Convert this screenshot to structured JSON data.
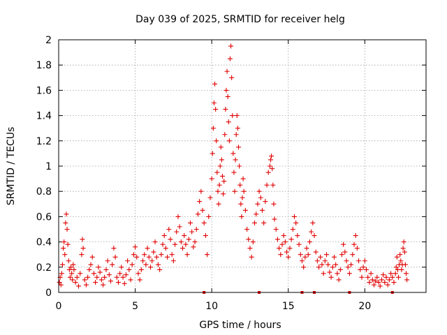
{
  "chart_data": {
    "type": "scatter",
    "title": "Day 039 of 2025, SRMTID for receiver helg",
    "xlabel": "GPS time / hours",
    "ylabel": "SRMTID / TECUs",
    "xlim": [
      0,
      24
    ],
    "ylim": [
      0,
      2
    ],
    "xticks": [
      0,
      5,
      10,
      15,
      20
    ],
    "yticks": [
      0,
      0.2,
      0.4,
      0.6,
      0.8,
      1,
      1.2,
      1.4,
      1.6,
      1.8,
      2
    ],
    "xtick_labels": [
      "0",
      "5",
      "10",
      "15",
      "20"
    ],
    "ytick_labels": [
      "0",
      "0.2",
      "0.4",
      "0.6",
      "0.8",
      "1",
      "1.2",
      "1.4",
      "1.6",
      "1.8",
      "2"
    ],
    "grid": true,
    "marker": "plus",
    "color": "#e00000",
    "series": [
      {
        "name": "SRMTID",
        "points": [
          [
            0.05,
            0.08
          ],
          [
            0.1,
            0.12
          ],
          [
            0.15,
            0.06
          ],
          [
            0.2,
            0.15
          ],
          [
            0.25,
            0.22
          ],
          [
            0.3,
            0.35
          ],
          [
            0.35,
            0.4
          ],
          [
            0.4,
            0.3
          ],
          [
            0.45,
            0.55
          ],
          [
            0.5,
            0.62
          ],
          [
            0.55,
            0.5
          ],
          [
            0.6,
            0.38
          ],
          [
            0.65,
            0.25
          ],
          [
            0.7,
            0.18
          ],
          [
            0.75,
            0.12
          ],
          [
            0.8,
            0.2
          ],
          [
            0.85,
            0.15
          ],
          [
            0.9,
            0.1
          ],
          [
            0.95,
            0.22
          ],
          [
            1.0,
            0.18
          ],
          [
            1.1,
            0.08
          ],
          [
            1.2,
            0.12
          ],
          [
            1.3,
            0.05
          ],
          [
            1.4,
            0.15
          ],
          [
            1.5,
            0.3
          ],
          [
            1.55,
            0.42
          ],
          [
            1.6,
            0.35
          ],
          [
            1.7,
            0.1
          ],
          [
            1.8,
            0.06
          ],
          [
            1.9,
            0.12
          ],
          [
            2.0,
            0.18
          ],
          [
            2.1,
            0.22
          ],
          [
            2.2,
            0.28
          ],
          [
            2.3,
            0.15
          ],
          [
            2.4,
            0.08
          ],
          [
            2.5,
            0.12
          ],
          [
            2.6,
            0.2
          ],
          [
            2.7,
            0.16
          ],
          [
            2.8,
            0.1
          ],
          [
            2.9,
            0.06
          ],
          [
            3.0,
            0.12
          ],
          [
            3.1,
            0.18
          ],
          [
            3.2,
            0.25
          ],
          [
            3.3,
            0.14
          ],
          [
            3.4,
            0.09
          ],
          [
            3.5,
            0.22
          ],
          [
            3.6,
            0.35
          ],
          [
            3.7,
            0.28
          ],
          [
            3.8,
            0.12
          ],
          [
            3.9,
            0.08
          ],
          [
            4.0,
            0.15
          ],
          [
            4.1,
            0.2
          ],
          [
            4.2,
            0.12
          ],
          [
            4.3,
            0.07
          ],
          [
            4.4,
            0.14
          ],
          [
            4.5,
            0.25
          ],
          [
            4.6,
            0.18
          ],
          [
            4.7,
            0.1
          ],
          [
            4.8,
            0.22
          ],
          [
            4.9,
            0.3
          ],
          [
            5.0,
            0.36
          ],
          [
            5.1,
            0.28
          ],
          [
            5.2,
            0.15
          ],
          [
            5.3,
            0.1
          ],
          [
            5.4,
            0.18
          ],
          [
            5.5,
            0.25
          ],
          [
            5.6,
            0.3
          ],
          [
            5.7,
            0.22
          ],
          [
            5.8,
            0.35
          ],
          [
            5.9,
            0.28
          ],
          [
            6.0,
            0.2
          ],
          [
            6.1,
            0.25
          ],
          [
            6.2,
            0.32
          ],
          [
            6.3,
            0.4
          ],
          [
            6.4,
            0.28
          ],
          [
            6.5,
            0.22
          ],
          [
            6.6,
            0.18
          ],
          [
            6.7,
            0.3
          ],
          [
            6.8,
            0.38
          ],
          [
            6.9,
            0.45
          ],
          [
            7.0,
            0.35
          ],
          [
            7.1,
            0.28
          ],
          [
            7.2,
            0.5
          ],
          [
            7.3,
            0.42
          ],
          [
            7.4,
            0.3
          ],
          [
            7.5,
            0.25
          ],
          [
            7.6,
            0.38
          ],
          [
            7.7,
            0.48
          ],
          [
            7.8,
            0.6
          ],
          [
            7.9,
            0.52
          ],
          [
            8.0,
            0.4
          ],
          [
            8.1,
            0.35
          ],
          [
            8.2,
            0.45
          ],
          [
            8.3,
            0.38
          ],
          [
            8.4,
            0.3
          ],
          [
            8.5,
            0.42
          ],
          [
            8.6,
            0.55
          ],
          [
            8.7,
            0.48
          ],
          [
            8.8,
            0.36
          ],
          [
            8.9,
            0.4
          ],
          [
            9.0,
            0.5
          ],
          [
            9.1,
            0.62
          ],
          [
            9.2,
            0.72
          ],
          [
            9.3,
            0.8
          ],
          [
            9.4,
            0.65
          ],
          [
            9.5,
            0.55
          ],
          [
            9.6,
            0.45
          ],
          [
            9.7,
            0.3
          ],
          [
            9.8,
            0.6
          ],
          [
            9.9,
            0.75
          ],
          [
            10.0,
            0.9
          ],
          [
            10.05,
            1.1
          ],
          [
            10.1,
            1.3
          ],
          [
            10.15,
            1.5
          ],
          [
            10.2,
            1.65
          ],
          [
            10.25,
            1.45
          ],
          [
            10.3,
            1.2
          ],
          [
            10.35,
            0.95
          ],
          [
            10.4,
            0.8
          ],
          [
            10.45,
            0.7
          ],
          [
            10.5,
            0.85
          ],
          [
            10.55,
            1.0
          ],
          [
            10.6,
            1.15
          ],
          [
            10.65,
            1.05
          ],
          [
            10.7,
            0.92
          ],
          [
            10.75,
            0.78
          ],
          [
            10.8,
            0.88
          ],
          [
            10.85,
            1.25
          ],
          [
            10.9,
            1.45
          ],
          [
            10.95,
            1.6
          ],
          [
            11.0,
            1.75
          ],
          [
            11.05,
            1.55
          ],
          [
            11.1,
            1.35
          ],
          [
            11.15,
            1.2
          ],
          [
            11.2,
            1.85
          ],
          [
            11.25,
            1.95
          ],
          [
            11.3,
            1.7
          ],
          [
            11.35,
            1.4
          ],
          [
            11.4,
            1.1
          ],
          [
            11.45,
            0.95
          ],
          [
            11.5,
            0.8
          ],
          [
            11.55,
            1.05
          ],
          [
            11.6,
            1.25
          ],
          [
            11.65,
            1.4
          ],
          [
            11.7,
            1.3
          ],
          [
            11.75,
            1.15
          ],
          [
            11.8,
            1.0
          ],
          [
            11.85,
            0.85
          ],
          [
            11.9,
            0.7
          ],
          [
            11.95,
            0.6
          ],
          [
            12.0,
            0.75
          ],
          [
            12.05,
            0.9
          ],
          [
            12.1,
            0.8
          ],
          [
            12.2,
            0.65
          ],
          [
            12.3,
            0.5
          ],
          [
            12.4,
            0.42
          ],
          [
            12.5,
            0.35
          ],
          [
            12.6,
            0.28
          ],
          [
            12.7,
            0.4
          ],
          [
            12.8,
            0.55
          ],
          [
            12.9,
            0.62
          ],
          [
            13.0,
            0.7
          ],
          [
            13.1,
            0.8
          ],
          [
            13.2,
            0.75
          ],
          [
            13.3,
            0.65
          ],
          [
            13.4,
            0.55
          ],
          [
            13.5,
            0.72
          ],
          [
            13.6,
            0.85
          ],
          [
            13.7,
            0.95
          ],
          [
            13.8,
            1.0
          ],
          [
            13.85,
            1.05
          ],
          [
            13.9,
            1.08
          ],
          [
            13.95,
            0.98
          ],
          [
            14.0,
            0.85
          ],
          [
            14.05,
            0.7
          ],
          [
            14.1,
            0.58
          ],
          [
            14.2,
            0.5
          ],
          [
            14.3,
            0.42
          ],
          [
            14.4,
            0.35
          ],
          [
            14.5,
            0.3
          ],
          [
            14.6,
            0.38
          ],
          [
            14.7,
            0.45
          ],
          [
            14.8,
            0.4
          ],
          [
            14.9,
            0.32
          ],
          [
            15.0,
            0.28
          ],
          [
            15.1,
            0.35
          ],
          [
            15.2,
            0.42
          ],
          [
            15.3,
            0.5
          ],
          [
            15.4,
            0.6
          ],
          [
            15.5,
            0.55
          ],
          [
            15.6,
            0.45
          ],
          [
            15.7,
            0.38
          ],
          [
            15.8,
            0.3
          ],
          [
            15.9,
            0.25
          ],
          [
            16.0,
            0.2
          ],
          [
            16.1,
            0.28
          ],
          [
            16.2,
            0.35
          ],
          [
            16.3,
            0.3
          ],
          [
            16.4,
            0.4
          ],
          [
            16.5,
            0.48
          ],
          [
            16.6,
            0.55
          ],
          [
            16.7,
            0.45
          ],
          [
            16.8,
            0.32
          ],
          [
            16.9,
            0.25
          ],
          [
            17.0,
            0.2
          ],
          [
            17.1,
            0.28
          ],
          [
            17.2,
            0.22
          ],
          [
            17.3,
            0.15
          ],
          [
            17.4,
            0.25
          ],
          [
            17.5,
            0.3
          ],
          [
            17.6,
            0.22
          ],
          [
            17.7,
            0.16
          ],
          [
            17.8,
            0.12
          ],
          [
            17.9,
            0.2
          ],
          [
            18.0,
            0.28
          ],
          [
            18.1,
            0.22
          ],
          [
            18.2,
            0.15
          ],
          [
            18.3,
            0.1
          ],
          [
            18.4,
            0.18
          ],
          [
            18.5,
            0.3
          ],
          [
            18.6,
            0.38
          ],
          [
            18.7,
            0.32
          ],
          [
            18.8,
            0.25
          ],
          [
            18.9,
            0.2
          ],
          [
            19.0,
            0.15
          ],
          [
            19.1,
            0.22
          ],
          [
            19.2,
            0.3
          ],
          [
            19.3,
            0.38
          ],
          [
            19.4,
            0.45
          ],
          [
            19.5,
            0.35
          ],
          [
            19.6,
            0.25
          ],
          [
            19.7,
            0.18
          ],
          [
            19.8,
            0.12
          ],
          [
            19.9,
            0.2
          ],
          [
            20.0,
            0.25
          ],
          [
            20.1,
            0.18
          ],
          [
            20.2,
            0.12
          ],
          [
            20.3,
            0.08
          ],
          [
            20.4,
            0.15
          ],
          [
            20.5,
            0.1
          ],
          [
            20.6,
            0.06
          ],
          [
            20.7,
            0.09
          ],
          [
            20.8,
            0.12
          ],
          [
            20.9,
            0.08
          ],
          [
            21.0,
            0.05
          ],
          [
            21.1,
            0.1
          ],
          [
            21.2,
            0.14
          ],
          [
            21.3,
            0.08
          ],
          [
            21.4,
            0.12
          ],
          [
            21.5,
            0.06
          ],
          [
            21.6,
            0.1
          ],
          [
            21.7,
            0.15
          ],
          [
            21.8,
            0.12
          ],
          [
            21.9,
            0.08
          ],
          [
            22.0,
            0.15
          ],
          [
            22.05,
            0.2
          ],
          [
            22.1,
            0.28
          ],
          [
            22.15,
            0.18
          ],
          [
            22.2,
            0.12
          ],
          [
            22.25,
            0.22
          ],
          [
            22.3,
            0.3
          ],
          [
            22.35,
            0.25
          ],
          [
            22.4,
            0.18
          ],
          [
            22.45,
            0.22
          ],
          [
            22.5,
            0.35
          ],
          [
            22.55,
            0.4
          ],
          [
            22.6,
            0.32
          ],
          [
            22.65,
            0.22
          ],
          [
            22.7,
            0.15
          ],
          [
            22.75,
            0.1
          ]
        ]
      }
    ],
    "markers_on_axis": [
      9.5,
      13.1,
      15.9,
      16.7,
      19.0,
      21.8
    ]
  }
}
